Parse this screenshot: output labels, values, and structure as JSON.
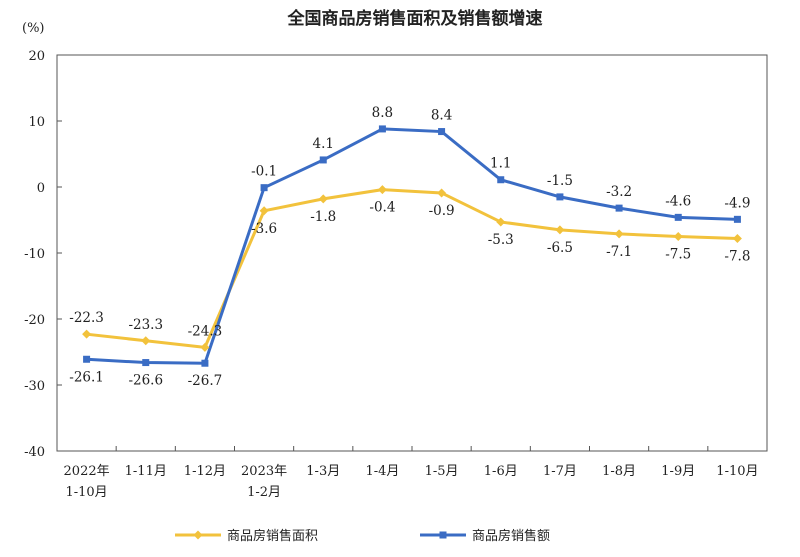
{
  "chart_data": {
    "type": "line",
    "title": "全国商品房销售面积及销售额增速",
    "ylabel": "(%)",
    "xlabel": "",
    "ylim": [
      -40,
      20
    ],
    "yticks": [
      20,
      10,
      0,
      -10,
      -20,
      -30,
      -40
    ],
    "grid": false,
    "legend_position": "bottom",
    "categories": [
      [
        "2022年",
        "1-10月"
      ],
      [
        "1-11月"
      ],
      [
        "1-12月"
      ],
      [
        "2023年",
        "1-2月"
      ],
      [
        "1-3月"
      ],
      [
        "1-4月"
      ],
      [
        "1-5月"
      ],
      [
        "1-6月"
      ],
      [
        "1-7月"
      ],
      [
        "1-8月"
      ],
      [
        "1-9月"
      ],
      [
        "1-10月"
      ]
    ],
    "series": [
      {
        "name": "商品房销售面积",
        "color": "#f2c23c",
        "marker": "diamond",
        "values": [
          -22.3,
          -23.3,
          -24.3,
          -3.6,
          -1.8,
          -0.4,
          -0.9,
          -5.3,
          -6.5,
          -7.1,
          -7.5,
          -7.8
        ],
        "labels": [
          "-22.3",
          "-23.3",
          "-24.3",
          "-3.6",
          "-1.8",
          "-0.4",
          "-0.9",
          "-5.3",
          "-6.5",
          "-7.1",
          "-7.5",
          "-7.8"
        ]
      },
      {
        "name": "商品房销售额",
        "color": "#3a6cc4",
        "marker": "square",
        "values": [
          -26.1,
          -26.6,
          -26.7,
          -0.1,
          4.1,
          8.8,
          8.4,
          1.1,
          -1.5,
          -3.2,
          -4.6,
          -4.9
        ],
        "labels": [
          "-26.1",
          "-26.6",
          "-26.7",
          "-0.1",
          "4.1",
          "8.8",
          "8.4",
          "1.1",
          "-1.5",
          "-3.2",
          "-4.6",
          "-4.9"
        ]
      }
    ]
  }
}
